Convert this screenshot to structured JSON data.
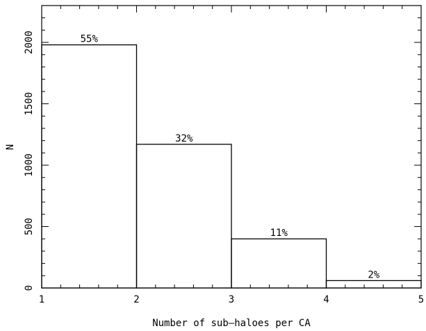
{
  "chart_data": {
    "type": "bar",
    "xlabel": "Number of sub–haloes per CA",
    "ylabel": "N",
    "xlim": [
      1,
      5
    ],
    "ylim": [
      0,
      2300
    ],
    "grid": false,
    "x_ticks": [
      {
        "value": 1,
        "label": "1"
      },
      {
        "value": 2,
        "label": "2"
      },
      {
        "value": 3,
        "label": "3"
      },
      {
        "value": 4,
        "label": "4"
      },
      {
        "value": 5,
        "label": "5"
      }
    ],
    "y_ticks": [
      {
        "value": 0,
        "label": "0"
      },
      {
        "value": 500,
        "label": "500"
      },
      {
        "value": 1000,
        "label": "1000"
      },
      {
        "value": 1500,
        "label": "1500"
      },
      {
        "value": 2000,
        "label": "2000"
      }
    ],
    "bins": [
      {
        "x0": 1,
        "x1": 2,
        "value": 1980,
        "label": "55%"
      },
      {
        "x0": 2,
        "x1": 3,
        "value": 1170,
        "label": "32%"
      },
      {
        "x0": 3,
        "x1": 4,
        "value": 400,
        "label": "11%"
      },
      {
        "x0": 4,
        "x1": 5,
        "value": 60,
        "label": "2%"
      }
    ]
  }
}
